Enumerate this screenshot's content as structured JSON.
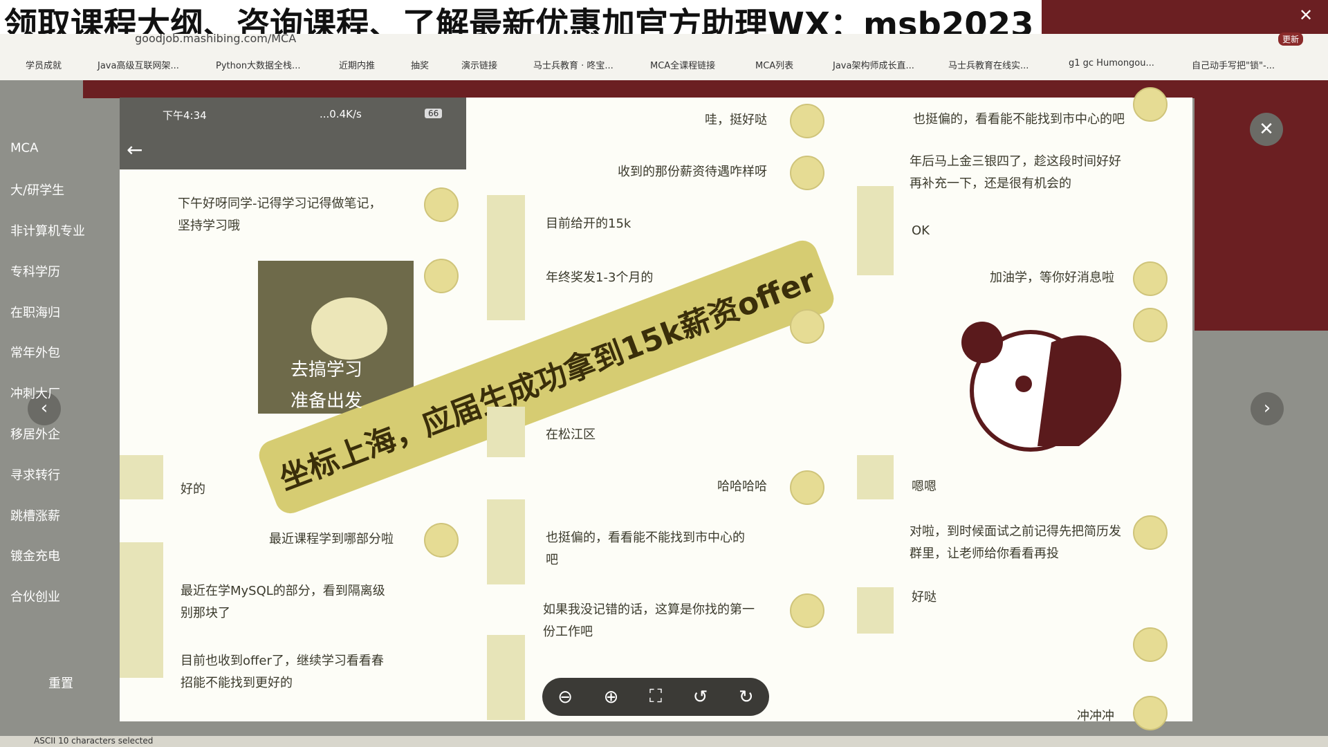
{
  "banner": {
    "title": "领取课程大纲、咨询课程、了解最新优惠加官方助理WX：msb2023"
  },
  "browser": {
    "url": "goodjob.mashibing.com/MCA",
    "update": "更新",
    "bookmarks": [
      "学员成就",
      "Java高级互联网架...",
      "Python大数据全栈...",
      "近期内推",
      "抽奖",
      "演示链接",
      "马士兵教育 · 咚宝...",
      "MCA全课程链接",
      "MCA列表",
      "Java架构师成长直...",
      "马士兵教育在线实...",
      "g1 gc Humongou...",
      "自己动手写把\"锁\"-..."
    ]
  },
  "sidebar": {
    "items": [
      "MCA",
      "大/研学生",
      "非计算机专业",
      "专科学历",
      "在职海归",
      "常年外包",
      "冲刺大厂",
      "移居外企",
      "寻求转行",
      "跳槽涨薪",
      "镀金充电",
      "合伙创业"
    ],
    "reset": "重置"
  },
  "phone": {
    "time": "下午4:34",
    "speed": "...0.4K/s",
    "battery": "66"
  },
  "sticker": {
    "lines": [
      "去搞学习",
      "准备出发"
    ]
  },
  "chat": {
    "left": [
      {
        "lines": [
          "下午好呀同学-记得学习记得做笔记，",
          "坚持学习哦"
        ]
      },
      {
        "lines": [
          "好的"
        ]
      },
      {
        "lines": [
          "最近课程学到哪部分啦"
        ]
      },
      {
        "lines": [
          "最近在学MySQL的部分，看到隔离级",
          "别那块了"
        ]
      },
      {
        "lines": [
          "目前也收到offer了，继续学习看看春",
          "招能不能找到更好的"
        ]
      }
    ],
    "middle": [
      {
        "lines": [
          "哇，挺好哒"
        ]
      },
      {
        "lines": [
          "收到的那份薪资待遇咋样呀"
        ]
      },
      {
        "lines": [
          "目前给开的15k"
        ]
      },
      {
        "lines": [
          "年终奖发1-3个月的"
        ]
      },
      {
        "lines": [
          "在松江区"
        ]
      },
      {
        "lines": [
          "哈哈哈哈"
        ]
      },
      {
        "lines": [
          "也挺偏的，看看能不能找到市中心的",
          "吧"
        ]
      },
      {
        "lines": [
          "如果我没记错的话，这算是你找的第一",
          "份工作吧"
        ]
      }
    ],
    "right": [
      {
        "lines": [
          "也挺偏的，看看能不能找到市中心的吧"
        ]
      },
      {
        "lines": [
          "年后马上金三银四了，趁这段时间好好",
          "再补充一下，还是很有机会的"
        ]
      },
      {
        "lines": [
          "OK"
        ]
      },
      {
        "lines": [
          "加油学，等你好消息啦"
        ]
      },
      {
        "lines": [
          "嗯嗯"
        ]
      },
      {
        "lines": [
          "对啦，到时候面试之前记得先把简历发",
          "群里，让老师给你看看再投"
        ]
      },
      {
        "lines": [
          "好哒"
        ]
      },
      {
        "lines": [
          "冲冲冲"
        ]
      }
    ]
  },
  "overlay": {
    "caption": "坐标上海，应届生成功拿到15k薪资offer"
  },
  "status": {
    "text": "ASCII 10 characters selected"
  }
}
